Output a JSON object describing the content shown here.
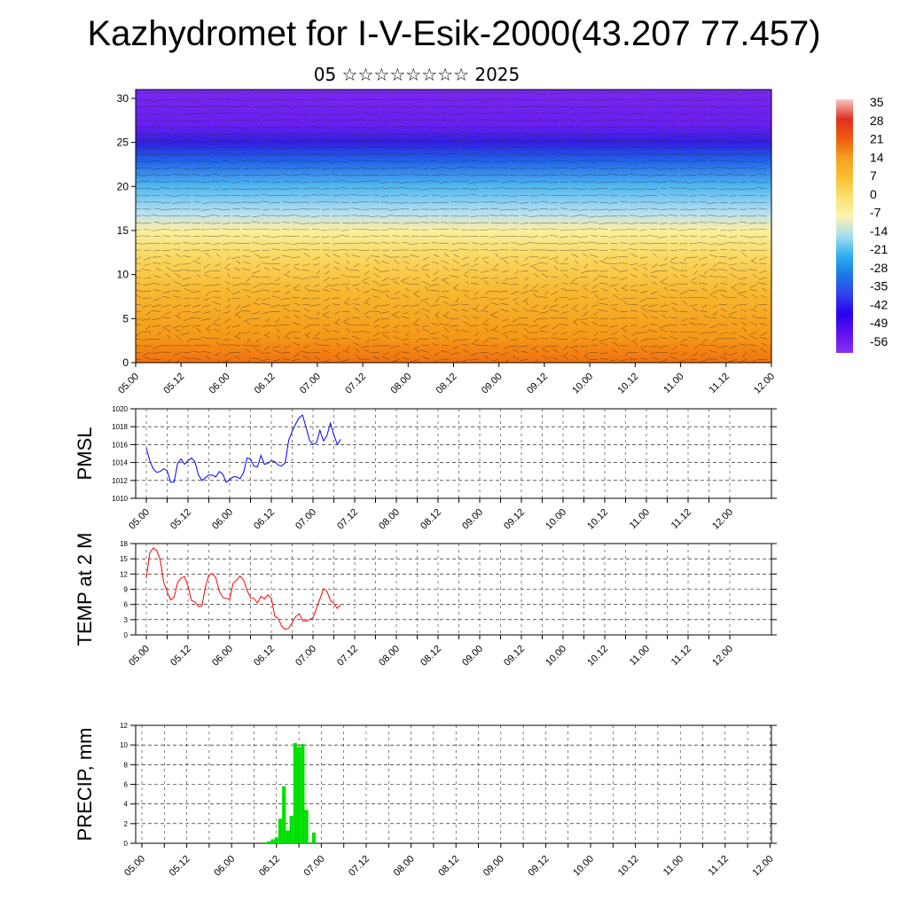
{
  "title": "Kazhydromet for I-V-Esik-2000(43.207 77.457)",
  "subtitle": "05 ☆☆☆☆☆☆☆☆ 2025",
  "colors": {
    "pmsl_line": "#0000ff",
    "temp_line": "#ff0000",
    "precip_bar": "#00e000",
    "grid": "#000000"
  },
  "chart_data": [
    {
      "type": "heatmap",
      "name_id": "cross-section",
      "y_ticks": [
        "0",
        "5",
        "10",
        "15",
        "20",
        "25",
        "30"
      ],
      "ylim": [
        0,
        31
      ],
      "x_ticks": [
        "05.00",
        "05.12",
        "06.00",
        "06.12",
        "07.00",
        "07.12",
        "08.00",
        "08.12",
        "09.00",
        "09.12",
        "10.00",
        "10.12",
        "11.00",
        "11.12",
        "12.00"
      ],
      "colorbar_labels": [
        "35",
        "28",
        "21",
        "14",
        "7",
        "0",
        "-7",
        "-14",
        "-21",
        "-28",
        "-35",
        "-42",
        "-49",
        "-56"
      ],
      "colorbar_colors": [
        "#f8c8c8",
        "#e03020",
        "#f05a10",
        "#f5a020",
        "#f8c030",
        "#fae070",
        "#fbf4b0",
        "#a9dcf0",
        "#30b0f0",
        "#1a78e6",
        "#3040f0",
        "#2a00f0",
        "#6010f0",
        "#8a30f0"
      ],
      "field_layers": [
        {
          "level": 0,
          "color": "#f07010"
        },
        {
          "level": 3,
          "color": "#f59a18"
        },
        {
          "level": 8,
          "color": "#f8b830"
        },
        {
          "level": 12,
          "color": "#fad860"
        },
        {
          "level": 15,
          "color": "#fbf0a0"
        },
        {
          "level": 17,
          "color": "#b8e0f2"
        },
        {
          "level": 20,
          "color": "#50b8f0"
        },
        {
          "level": 23,
          "color": "#2060e8"
        },
        {
          "level": 25,
          "color": "#3020e0"
        },
        {
          "level": 27,
          "color": "#6a1ef0"
        },
        {
          "level": 31,
          "color": "#7a28f0"
        }
      ]
    },
    {
      "type": "line",
      "ylabel": "PMSL",
      "ylim": [
        1010,
        1020
      ],
      "y_ticks": [
        "1010",
        "1012",
        "1014",
        "1016",
        "1018",
        "1020"
      ],
      "x_ticks": [
        "05.00",
        "05.12",
        "06.00",
        "06.12",
        "07.00",
        "07.12",
        "08.00",
        "08.12",
        "09.00",
        "09.12",
        "10.00",
        "10.12",
        "11.00",
        "11.12",
        "12.00"
      ],
      "series": [
        {
          "values": [
            1015.6,
            1014.2,
            1013.3,
            1012.9,
            1013.0,
            1013.3,
            1013.1,
            1011.8,
            1011.8,
            1013.9,
            1014.4,
            1013.8,
            1014.2,
            1014.5,
            1014.1,
            1012.6,
            1012.0,
            1012.3,
            1012.6,
            1012.6,
            1012.4,
            1013.0,
            1012.7,
            1011.8,
            1012.1,
            1012.4,
            1012.4,
            1012.2,
            1012.9,
            1014.5,
            1014.4,
            1013.6,
            1013.5,
            1014.8,
            1013.8,
            1013.9,
            1014.2,
            1014.1,
            1013.7,
            1013.6,
            1014.0,
            1016.5,
            1017.5,
            1018.3,
            1019.0,
            1019.3,
            1017.9,
            1016.5,
            1016.0,
            1016.2,
            1017.6,
            1016.4,
            1017.0,
            1018.4,
            1017.1,
            1016.0,
            1016.6
          ]
        }
      ]
    },
    {
      "type": "line",
      "ylabel": "TEMP at 2 M",
      "ylim": [
        0,
        18
      ],
      "y_ticks": [
        "0",
        "3",
        "6",
        "9",
        "12",
        "15",
        "18"
      ],
      "x_ticks": [
        "05.00",
        "05.12",
        "06.00",
        "06.12",
        "07.00",
        "07.12",
        "08.00",
        "08.12",
        "09.00",
        "09.12",
        "10.00",
        "10.12",
        "11.00",
        "11.12",
        "12.00"
      ],
      "series": [
        {
          "values": [
            11.2,
            16.2,
            17.1,
            16.6,
            14.8,
            10.4,
            8.5,
            6.9,
            7.4,
            10.3,
            11.2,
            11.5,
            9.6,
            6.8,
            6.5,
            5.6,
            5.7,
            9.4,
            11.8,
            12.1,
            11.3,
            8.6,
            7.4,
            7.2,
            7.0,
            10.2,
            10.8,
            11.6,
            10.8,
            8.8,
            7.3,
            7.2,
            6.3,
            7.6,
            7.1,
            7.9,
            7.2,
            3.7,
            3.2,
            1.7,
            1.1,
            1.3,
            2.4,
            3.6,
            4.2,
            2.8,
            2.7,
            3.0,
            3.4,
            5.2,
            7.1,
            9.1,
            8.6,
            6.8,
            6.2,
            5.2,
            6.0
          ]
        }
      ]
    },
    {
      "type": "bar",
      "ylabel": "PRECIP, mm",
      "ylim": [
        0,
        12
      ],
      "y_ticks": [
        "0",
        "2",
        "4",
        "6",
        "8",
        "10",
        "12"
      ],
      "x_ticks": [
        "05.00",
        "05.12",
        "06.00",
        "06.12",
        "07.00",
        "07.12",
        "08.00",
        "08.12",
        "09.00",
        "09.12",
        "10.00",
        "10.12",
        "11.00",
        "11.12",
        "12.00"
      ],
      "series": [
        {
          "values": [
            0,
            0,
            0,
            0,
            0,
            0,
            0,
            0,
            0,
            0,
            0,
            0,
            0,
            0,
            0,
            0,
            0,
            0,
            0,
            0,
            0,
            0,
            0,
            0,
            0,
            0,
            0,
            0,
            0,
            0,
            0,
            0,
            0,
            0.1,
            0.2,
            0.4,
            0.6,
            2.5,
            5.8,
            1.3,
            2.8,
            10.2,
            9.8,
            10.1,
            3.4,
            0,
            1.1,
            0,
            0,
            0,
            0,
            0,
            0,
            0,
            0,
            0,
            0
          ]
        }
      ]
    }
  ]
}
